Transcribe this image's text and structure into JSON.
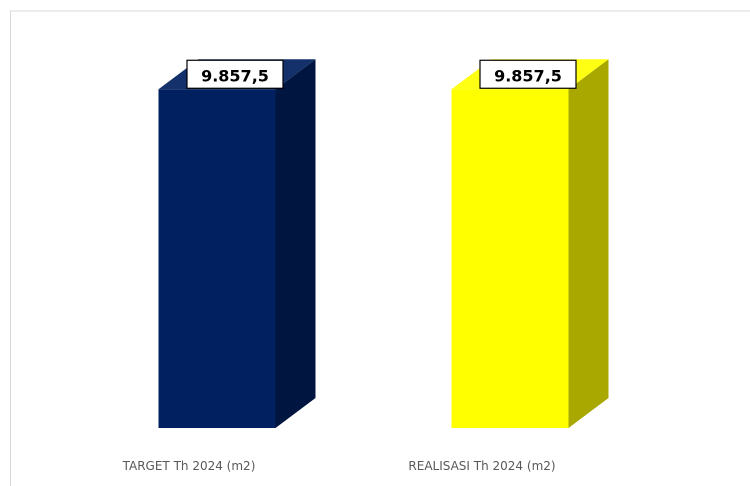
{
  "chart_data": {
    "type": "bar",
    "style": "3d-column",
    "categories": [
      "TARGET Th 2024 (m2)",
      "REALISASI Th 2024 (m2)"
    ],
    "values": [
      9857.5,
      9857.5
    ],
    "data_labels": [
      "9.857,5",
      "9.857,5"
    ],
    "colors": [
      "#002060",
      "#FFFF00"
    ],
    "side_colors": [
      "#001540",
      "#A8A800"
    ],
    "title": "",
    "xlabel": "",
    "ylabel": "",
    "ylim": [
      0,
      11000
    ],
    "grid": false,
    "legend": "none"
  }
}
